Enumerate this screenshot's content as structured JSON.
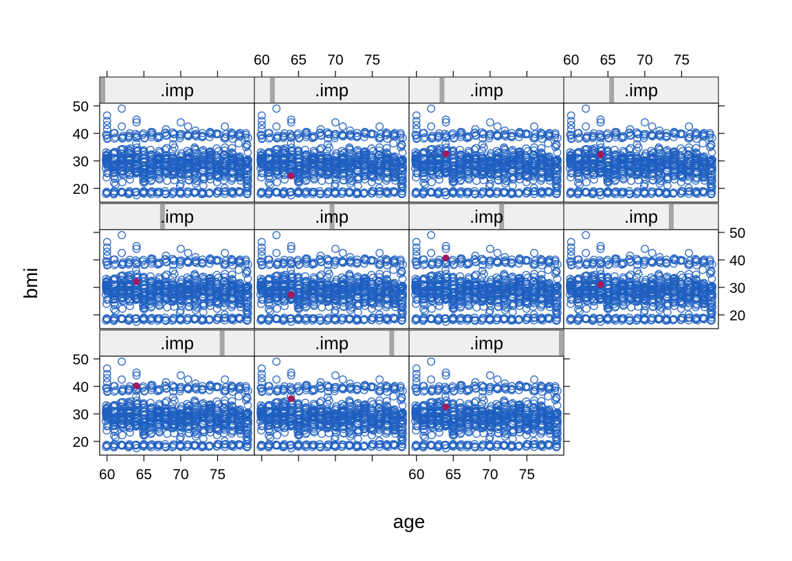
{
  "chart_data": {
    "type": "scatter",
    "xlabel": "age",
    "ylabel": "bmi",
    "xlim": [
      59,
      80
    ],
    "ylim": [
      15,
      51
    ],
    "x_ticks": [
      60,
      65,
      70,
      75
    ],
    "y_ticks": [
      20,
      30,
      40,
      50
    ],
    "strip_var_min": 0,
    "strip_var_max": 10,
    "colors": {
      "observed": "#1f5fbf",
      "imputed": "#a3195b",
      "strip_bg": "#efefef",
      "strip_bar": "#a6a6a6"
    },
    "observed_cloud": {
      "x_range": [
        60,
        79
      ],
      "y_core_range": [
        19,
        38
      ],
      "sample_points": [
        {
          "x": 60,
          "y": 46.5
        },
        {
          "x": 60,
          "y": 44.5
        },
        {
          "x": 60,
          "y": 43.0
        },
        {
          "x": 60,
          "y": 41.5
        },
        {
          "x": 62,
          "y": 49.0
        },
        {
          "x": 62,
          "y": 42.5
        },
        {
          "x": 64,
          "y": 45.0
        },
        {
          "x": 64,
          "y": 44.0
        },
        {
          "x": 66,
          "y": 40.5
        },
        {
          "x": 68,
          "y": 41.5
        },
        {
          "x": 70,
          "y": 44.0
        },
        {
          "x": 71,
          "y": 42.5
        },
        {
          "x": 72,
          "y": 41.0
        },
        {
          "x": 74,
          "y": 40.5
        },
        {
          "x": 76,
          "y": 42.5
        },
        {
          "x": 77,
          "y": 40.0
        },
        {
          "x": 78,
          "y": 39.5
        },
        {
          "x": 79,
          "y": 36.0
        },
        {
          "x": 61,
          "y": 19.0
        },
        {
          "x": 63,
          "y": 18.5
        },
        {
          "x": 64,
          "y": 17.5
        },
        {
          "x": 65,
          "y": 19.0
        },
        {
          "x": 67,
          "y": 18.5
        },
        {
          "x": 70,
          "y": 18.0
        },
        {
          "x": 73,
          "y": 18.5
        },
        {
          "x": 75,
          "y": 19.0
        },
        {
          "x": 77,
          "y": 19.0
        },
        {
          "x": 79,
          "y": 20.0
        }
      ]
    },
    "panels": [
      {
        "strip": ".imp",
        "strip_value": 0,
        "imputed": []
      },
      {
        "strip": ".imp",
        "strip_value": 1,
        "imputed": [
          {
            "x": 64,
            "y": 24.5
          }
        ]
      },
      {
        "strip": ".imp",
        "strip_value": 2,
        "imputed": [
          {
            "x": 64,
            "y": 32.5
          }
        ]
      },
      {
        "strip": ".imp",
        "strip_value": 3,
        "imputed": [
          {
            "x": 64,
            "y": 32.3
          }
        ]
      },
      {
        "strip": ".imp",
        "strip_value": 4,
        "imputed": [
          {
            "x": 64,
            "y": 32.1
          }
        ]
      },
      {
        "strip": ".imp",
        "strip_value": 5,
        "imputed": [
          {
            "x": 64,
            "y": 27.3
          }
        ]
      },
      {
        "strip": ".imp",
        "strip_value": 6,
        "imputed": [
          {
            "x": 64,
            "y": 40.7
          }
        ]
      },
      {
        "strip": ".imp",
        "strip_value": 7,
        "imputed": [
          {
            "x": 64,
            "y": 31.0
          }
        ]
      },
      {
        "strip": ".imp",
        "strip_value": 8,
        "imputed": [
          {
            "x": 64,
            "y": 40.2
          }
        ]
      },
      {
        "strip": ".imp",
        "strip_value": 9,
        "imputed": [
          {
            "x": 64,
            "y": 35.5
          }
        ]
      },
      {
        "strip": ".imp",
        "strip_value": 10,
        "imputed": [
          {
            "x": 64,
            "y": 32.5
          }
        ]
      }
    ]
  }
}
